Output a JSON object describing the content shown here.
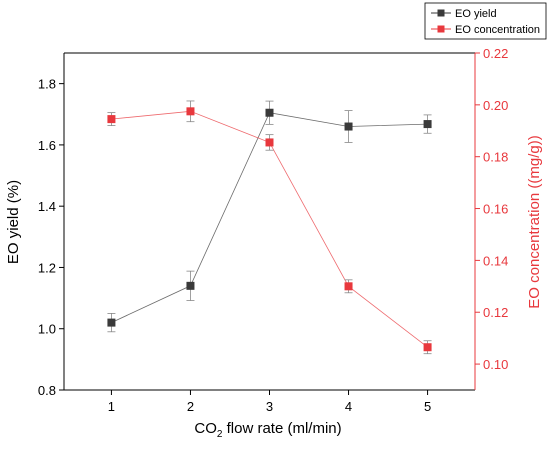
{
  "chart_data": {
    "type": "line",
    "x": [
      1,
      2,
      3,
      4,
      5
    ],
    "xlabel_prefix": "CO",
    "xlabel_subscript": "2",
    "xlabel_suffix": " flow rate (ml/min)",
    "ylabel_left": "EO yield (%)",
    "ylabel_right": "EO concentration ((mg/g))",
    "xlim": [
      0.4,
      5.6
    ],
    "ylim_left": [
      0.8,
      1.9
    ],
    "ylim_right": [
      0.09,
      0.22
    ],
    "xticks": [
      1,
      2,
      3,
      4,
      5
    ],
    "yticks_left": [
      0.8,
      1.0,
      1.2,
      1.4,
      1.6,
      1.8
    ],
    "yticks_right": [
      0.1,
      0.12,
      0.14,
      0.16,
      0.18,
      0.2,
      0.22
    ],
    "grid": false,
    "legend_position": "top-right, outside plot",
    "series": [
      {
        "name": "EO yield",
        "axis": "left",
        "color": "#3a3a3a",
        "values": [
          1.02,
          1.14,
          1.705,
          1.66,
          1.668
        ],
        "errors": [
          0.03,
          0.048,
          0.038,
          0.052,
          0.03
        ]
      },
      {
        "name": "EO concentration",
        "axis": "right",
        "color": "#e8383d",
        "values": [
          0.1945,
          0.1975,
          0.1855,
          0.13,
          0.1065
        ],
        "errors": [
          0.0025,
          0.004,
          0.003,
          0.0025,
          0.0025
        ]
      }
    ]
  }
}
